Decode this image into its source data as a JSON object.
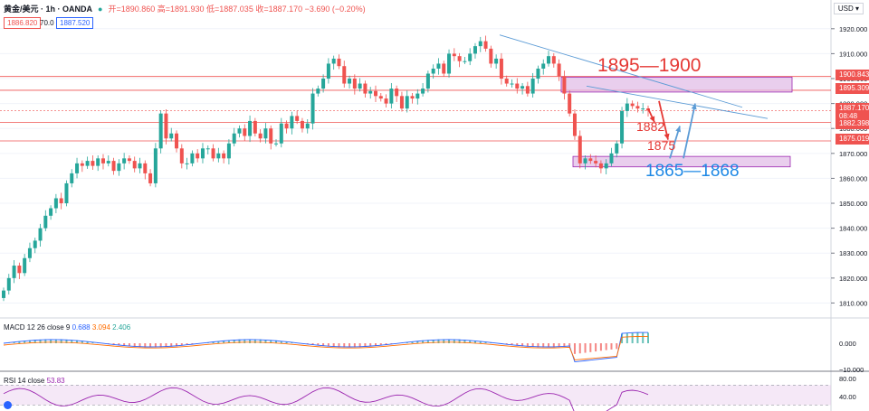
{
  "header": {
    "symbol": "黄金/美元 · 1h · OANDA",
    "ohlc": "开=1890.860 高=1891.930 低=1887.035 收=1887.170 −3.690 (−0.20%)",
    "bid": "1886.820",
    "spread": "70.0",
    "ask": "1887.520",
    "currency": "USD",
    "currency_menu": "USD ▾"
  },
  "price_axis": {
    "ticks": [
      "1920.000",
      "1910.000",
      "1900.000",
      "1890.000",
      "1880.000",
      "1870.000",
      "1860.000",
      "1850.000",
      "1840.000",
      "1830.000",
      "1820.000",
      "1810.000"
    ],
    "tick_values": [
      1920,
      1910,
      1900,
      1890,
      1880,
      1870,
      1860,
      1850,
      1840,
      1830,
      1820,
      1810
    ],
    "range": [
      1804,
      1925
    ]
  },
  "level_labels": {
    "l1900": "1900.843",
    "l1895": "1895.309",
    "current": "1887.170",
    "countdown": "08:48",
    "l1882": "1882.398",
    "l1875": "1875.019"
  },
  "annotations": {
    "zone_high": "1895—1900",
    "zone_low": "1865—1868",
    "target1": "1882",
    "target2": "1875"
  },
  "macd": {
    "title": "MACD 12 26 close 9",
    "v1": "0.688",
    "v2": "3.094",
    "v3": "2.406",
    "axis0": "0.000",
    "axisneg": "−10.000"
  },
  "rsi": {
    "title": "RSI 14 close",
    "value": "53.83",
    "axis80": "80.00",
    "axis40": "40.00"
  },
  "colors": {
    "up": "#26a69a",
    "down": "#ef5350",
    "level_line": "#ef5350",
    "zone_fill": "#e1bee7",
    "zone_border": "#9c27b0",
    "trend": "#5b9bd5",
    "blue_text": "#1e88e5",
    "red_text": "#e53935",
    "rsi": "#9c27b0"
  },
  "chart_data": {
    "type": "candlestick",
    "instrument": "黄金/美元",
    "timeframe": "1h",
    "ylim": [
      1804,
      1925
    ],
    "price_levels": [
      1900.843,
      1895.309,
      1887.17,
      1882.398,
      1875.019
    ],
    "zones": [
      [
        1895,
        1900
      ],
      [
        1865,
        1868
      ]
    ],
    "closes": [
      1815,
      1820,
      1825,
      1822,
      1828,
      1832,
      1835,
      1840,
      1845,
      1848,
      1852,
      1850,
      1858,
      1862,
      1866,
      1865,
      1867,
      1865,
      1868,
      1866,
      1867,
      1863,
      1866,
      1868,
      1867,
      1864,
      1866,
      1862,
      1858,
      1872,
      1886,
      1876,
      1878,
      1872,
      1866,
      1866,
      1870,
      1868,
      1872,
      1872,
      1868,
      1870,
      1868,
      1874,
      1878,
      1880,
      1877,
      1883,
      1878,
      1876,
      1880,
      1874,
      1874,
      1882,
      1880,
      1885,
      1883,
      1880,
      1882,
      1894,
      1896,
      1900,
      1906,
      1908,
      1905,
      1898,
      1900,
      1896,
      1898,
      1894,
      1895,
      1893,
      1892,
      1890,
      1896,
      1893,
      1888,
      1893,
      1892,
      1894,
      1896,
      1902,
      1904,
      1906,
      1902,
      1910,
      1909,
      1907,
      1907,
      1910,
      1913,
      1915,
      1912,
      1906,
      1908,
      1900,
      1898,
      1898,
      1896,
      1897,
      1894,
      1900,
      1904,
      1906,
      1909,
      1906,
      1901,
      1894,
      1886,
      1877,
      1866,
      1868,
      1867,
      1866,
      1864,
      1866,
      1870,
      1874,
      1887,
      1890,
      1889,
      1888,
      1888,
      1887.17
    ]
  }
}
